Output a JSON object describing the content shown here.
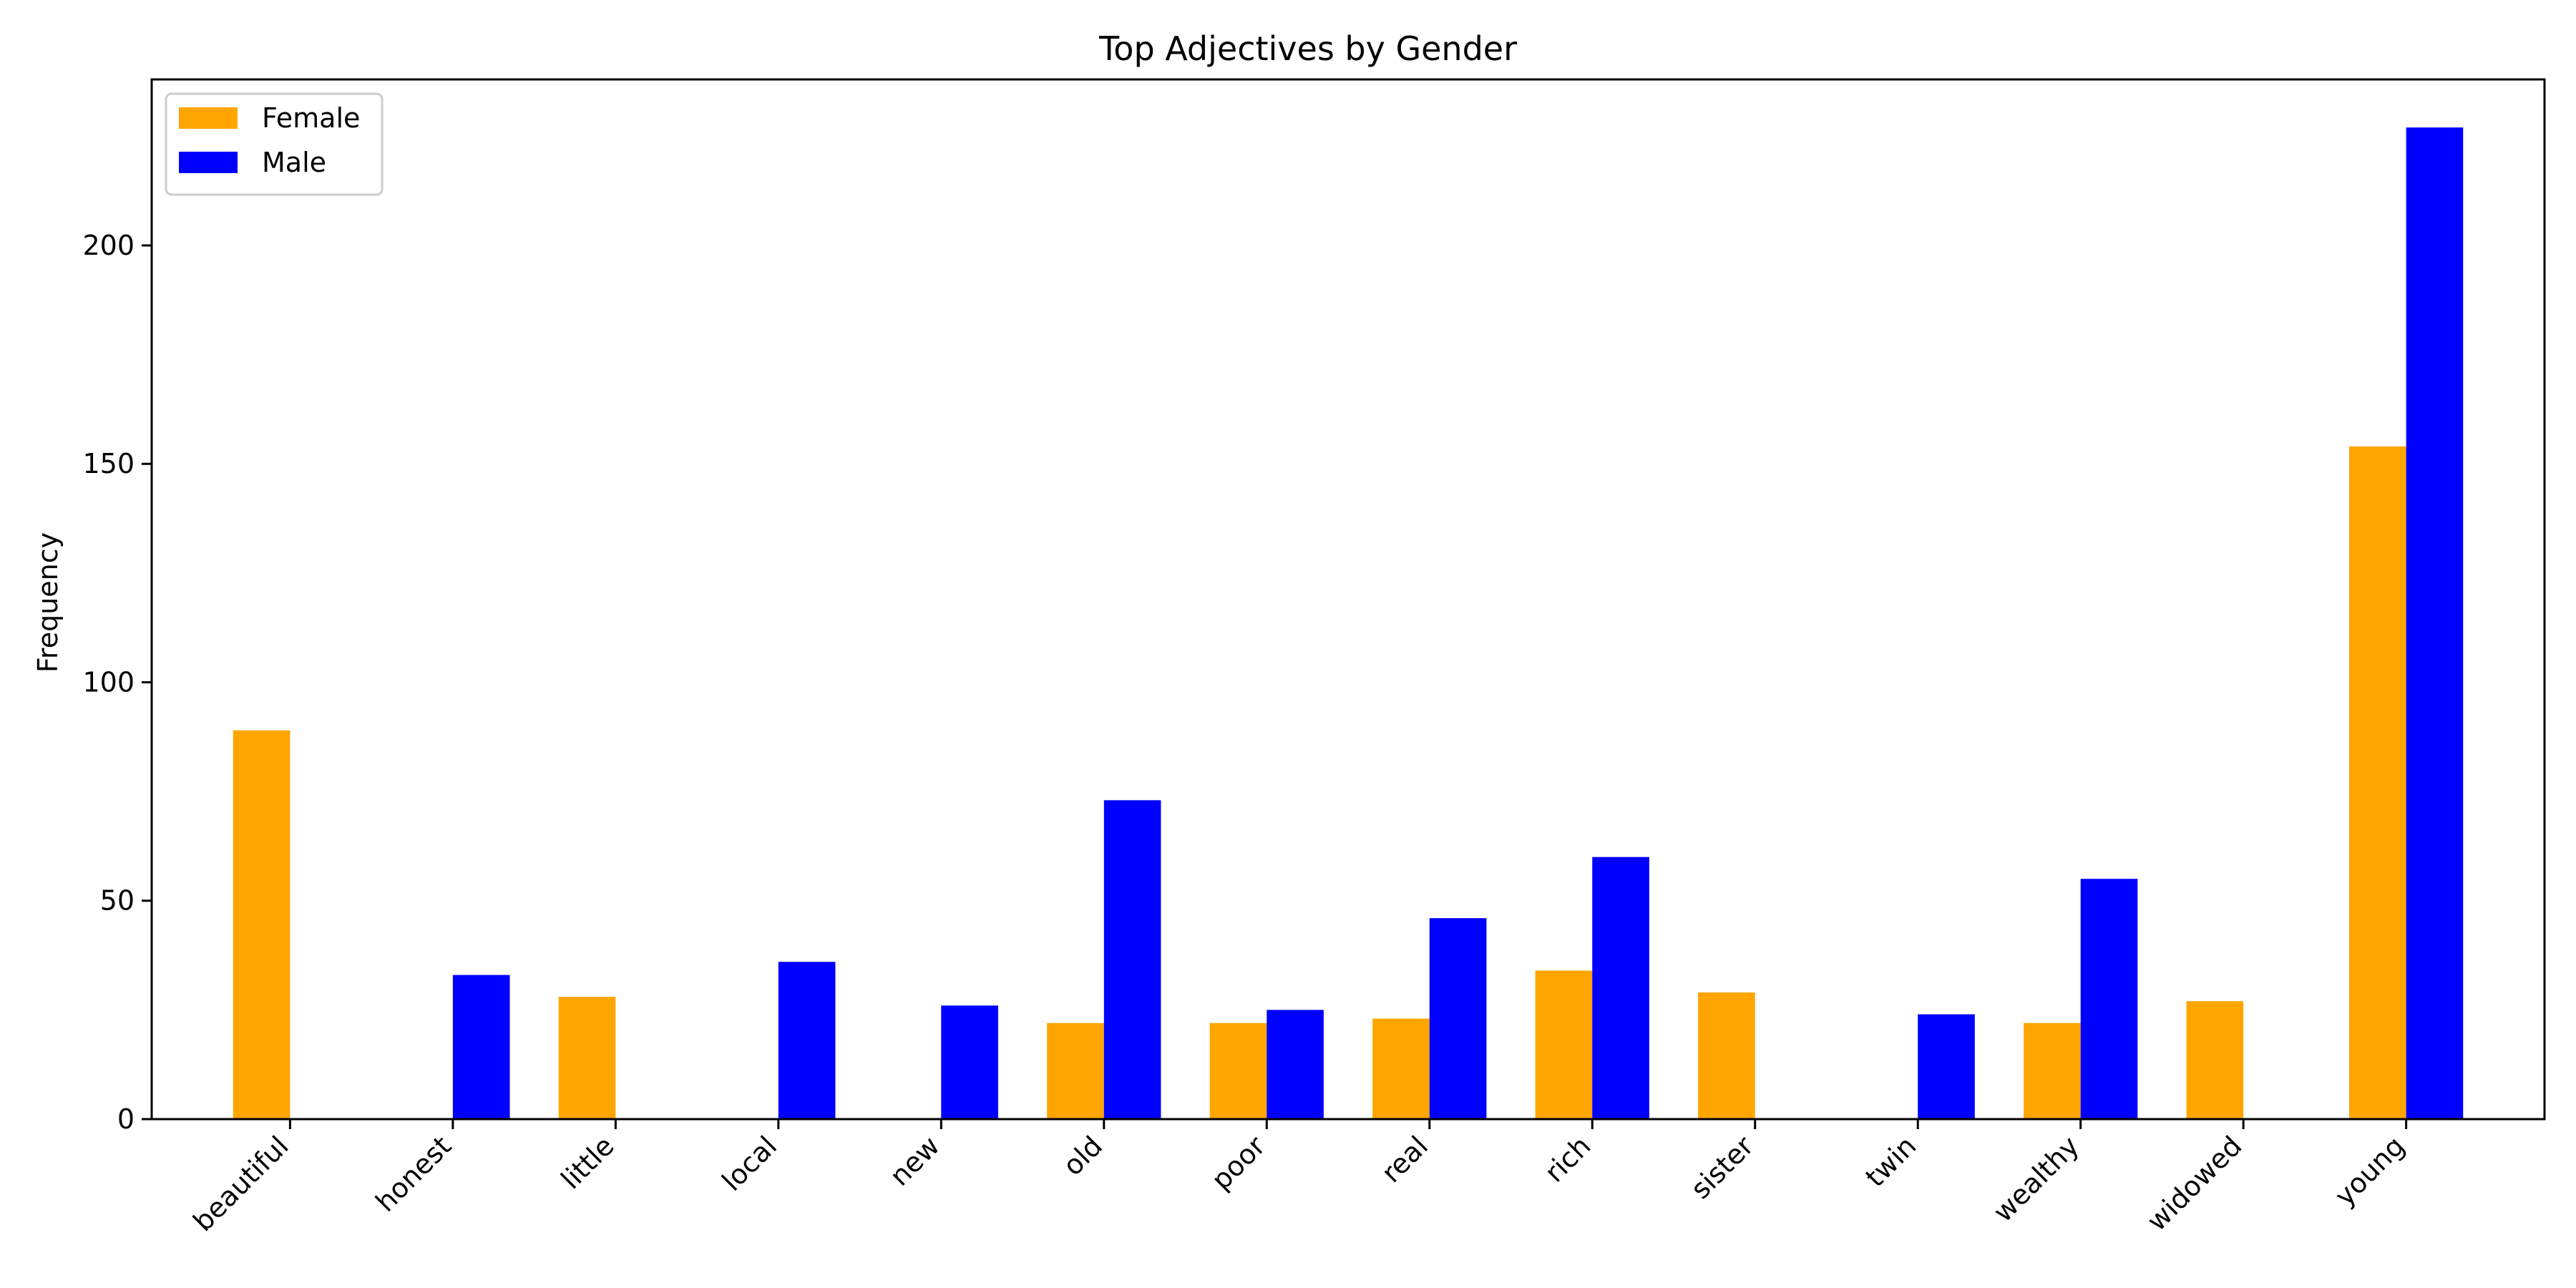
{
  "chart_data": {
    "type": "bar",
    "title": "Top Adjectives by Gender",
    "xlabel": "",
    "ylabel": "Frequency",
    "ylim": [
      0,
      238
    ],
    "yticks": [
      0,
      50,
      100,
      150,
      200
    ],
    "grid": false,
    "legend_position": "top-left",
    "categories": [
      "beautiful",
      "honest",
      "little",
      "local",
      "new",
      "old",
      "poor",
      "real",
      "rich",
      "sister",
      "twin",
      "wealthy",
      "widowed",
      "young"
    ],
    "series": [
      {
        "name": "Female",
        "color": "#FFA500",
        "values": [
          89,
          0,
          28,
          0,
          0,
          22,
          22,
          23,
          34,
          29,
          0,
          22,
          27,
          154
        ]
      },
      {
        "name": "Male",
        "color": "#0000FF",
        "values": [
          0,
          33,
          0,
          36,
          26,
          73,
          25,
          46,
          60,
          0,
          24,
          55,
          0,
          227
        ]
      }
    ]
  }
}
